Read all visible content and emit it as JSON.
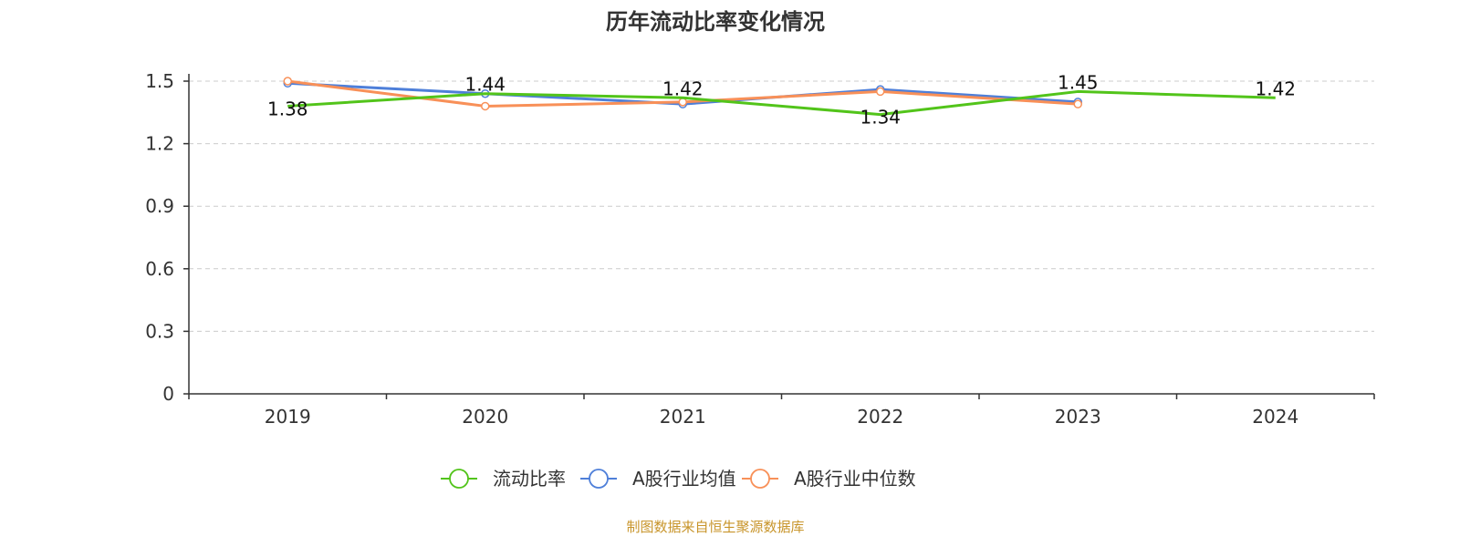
{
  "chart_data": {
    "type": "line",
    "title": "历年流动比率变化情况",
    "categories": [
      "2019",
      "2020",
      "2021",
      "2022",
      "2023",
      "2024"
    ],
    "ylim": [
      0,
      1.5
    ],
    "yticks": [
      "0",
      "0.3",
      "0.6",
      "0.9",
      "1.2",
      "1.5"
    ],
    "grid": true,
    "legend_position": "bottom",
    "series": [
      {
        "name": "流动比率",
        "color": "#52c41a",
        "values": [
          1.38,
          1.44,
          1.42,
          1.34,
          1.45,
          1.42
        ],
        "labels": [
          "1.38",
          "1.44",
          "1.42",
          "1.34",
          "1.45",
          "1.42"
        ],
        "show_labels": true
      },
      {
        "name": "A股行业均值",
        "color": "#4e7fd9",
        "values": [
          1.49,
          1.44,
          1.39,
          1.46,
          1.4,
          null
        ],
        "show_labels": false
      },
      {
        "name": "A股行业中位数",
        "color": "#f89058",
        "values": [
          1.5,
          1.38,
          1.4,
          1.45,
          1.39,
          null
        ],
        "show_labels": false
      }
    ],
    "source": "制图数据来自恒生聚源数据库"
  }
}
